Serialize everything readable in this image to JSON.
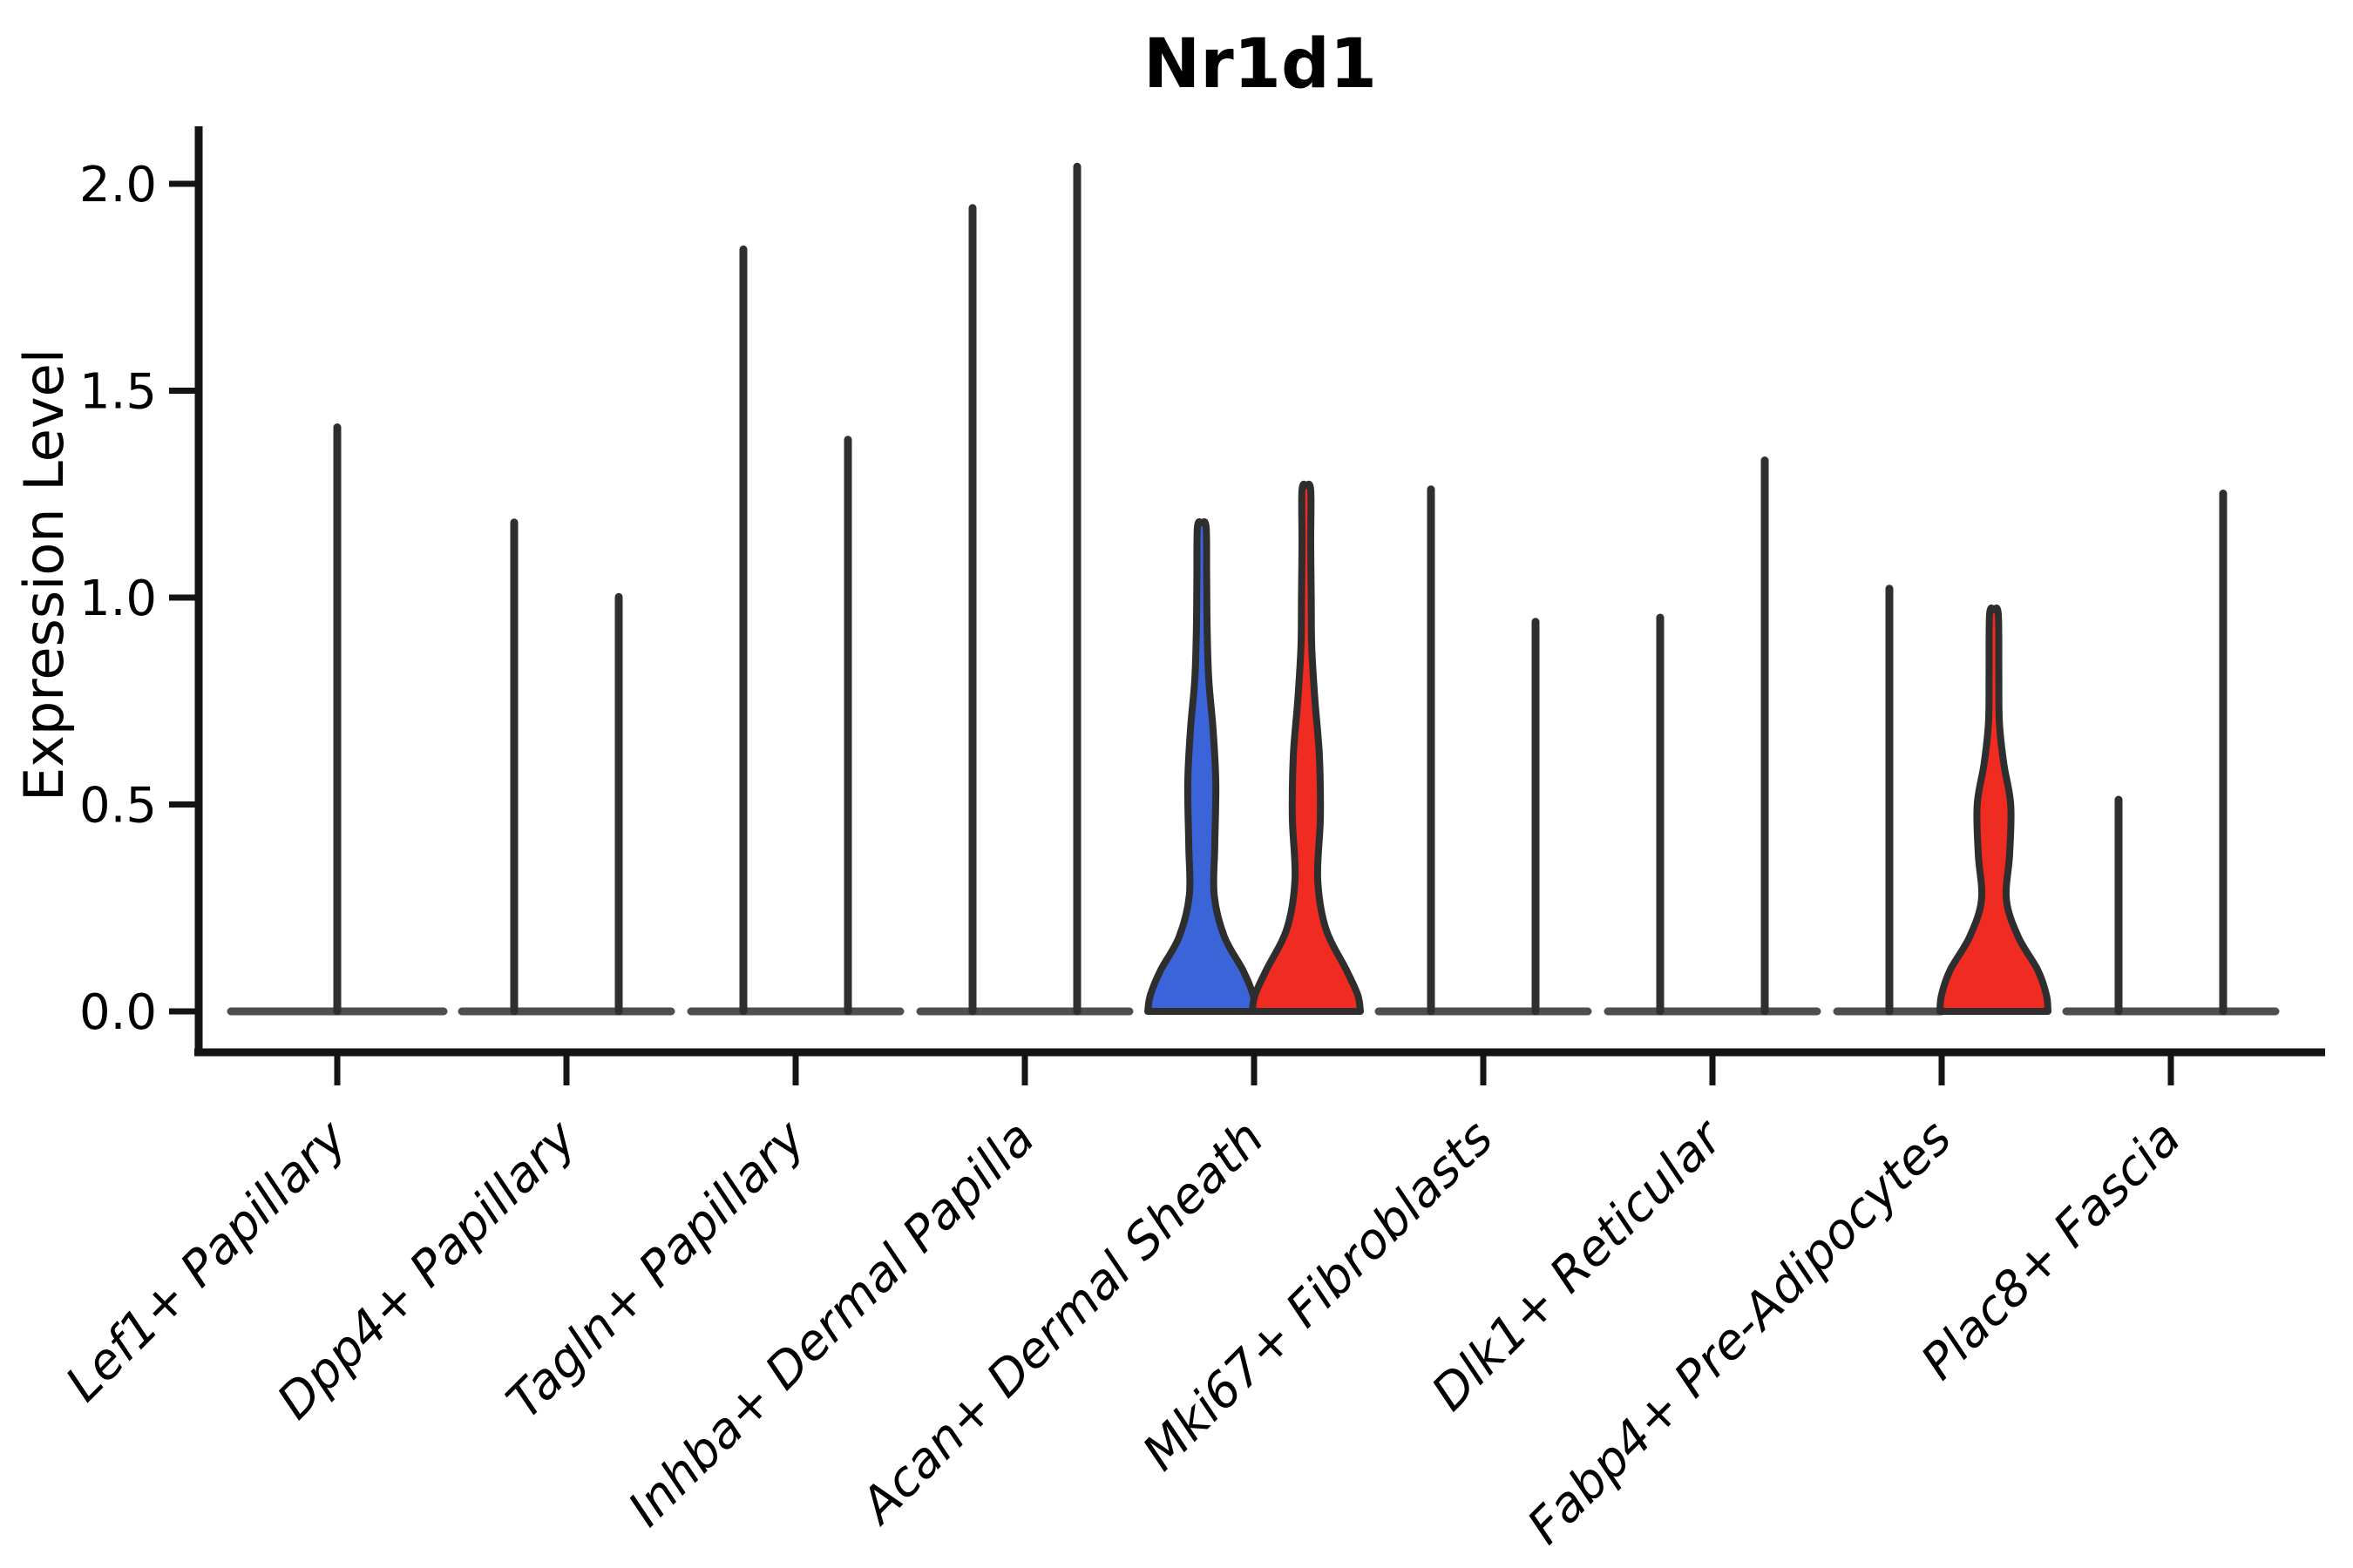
{
  "title": "Nr1d1",
  "chart_data": {
    "type": "violin",
    "title": "Nr1d1",
    "xlabel": "",
    "ylabel": "Expression Level",
    "ylim": [
      0,
      2.16
    ],
    "yticks": [
      0.0,
      0.5,
      1.0,
      1.5,
      2.0
    ],
    "grid": false,
    "legend": "none",
    "tick_label_style": "italic, rotated 45deg",
    "categories": [
      "Lef1+ Papillary",
      "Dpp4+ Papillary",
      "Tagln+ Papillary",
      "Inhba+ Dermal Papilla",
      "Acan+ Dermal Sheath",
      "Mki67+ Fibroblasts",
      "Dlk1+ Reticular",
      "Fabp4+ Pre-Adipocytes",
      "Plac8+ Fascia"
    ],
    "palette": {
      "split_blue": "#3B64D8",
      "split_red": "#F02B21",
      "violin_outline": "#2E2E2E",
      "spike_line": "#2F2F2F",
      "zero_baseline": "#4E4E4E",
      "axis": "#141414"
    },
    "groups": [
      {
        "category": "Lef1+ Papillary",
        "violins": [
          {
            "position": "full",
            "kind": "spike",
            "max": 1.42,
            "fill": null
          }
        ]
      },
      {
        "category": "Dpp4+ Papillary",
        "violins": [
          {
            "position": "left",
            "kind": "spike",
            "max": 1.19,
            "fill": null
          },
          {
            "position": "right",
            "kind": "spike",
            "max": 1.01,
            "fill": null
          }
        ]
      },
      {
        "category": "Tagln+ Papillary",
        "violins": [
          {
            "position": "left",
            "kind": "spike",
            "max": 1.85,
            "fill": null
          },
          {
            "position": "right",
            "kind": "spike",
            "max": 1.39,
            "fill": null
          }
        ]
      },
      {
        "category": "Inhba+ Dermal Papilla",
        "violins": [
          {
            "position": "left",
            "kind": "spike",
            "max": 1.95,
            "fill": null
          },
          {
            "position": "right",
            "kind": "spike",
            "max": 2.05,
            "fill": null
          }
        ]
      },
      {
        "category": "Acan+ Dermal Sheath",
        "violins": [
          {
            "position": "left",
            "kind": "density",
            "max": 1.17,
            "fill": "#3B64D8",
            "profile": [
              [
                0,
                1.0
              ],
              [
                0.04,
                0.95
              ],
              [
                0.1,
                0.76
              ],
              [
                0.18,
                0.42
              ],
              [
                0.28,
                0.23
              ],
              [
                0.4,
                0.24
              ],
              [
                0.55,
                0.26
              ],
              [
                0.68,
                0.21
              ],
              [
                0.8,
                0.13
              ],
              [
                0.92,
                0.1
              ],
              [
                1.05,
                0.09
              ],
              [
                1.17,
                0.08
              ]
            ]
          },
          {
            "position": "right",
            "kind": "density",
            "max": 1.26,
            "fill": "#F02B21",
            "profile": [
              [
                0,
                1.0
              ],
              [
                0.04,
                0.95
              ],
              [
                0.1,
                0.74
              ],
              [
                0.2,
                0.36
              ],
              [
                0.32,
                0.21
              ],
              [
                0.47,
                0.26
              ],
              [
                0.62,
                0.24
              ],
              [
                0.75,
                0.16
              ],
              [
                0.88,
                0.1
              ],
              [
                1.0,
                0.09
              ],
              [
                1.13,
                0.08
              ],
              [
                1.26,
                0.08
              ]
            ]
          }
        ]
      },
      {
        "category": "Mki67+ Fibroblasts",
        "violins": [
          {
            "position": "left",
            "kind": "spike",
            "max": 1.27,
            "fill": null
          },
          {
            "position": "right",
            "kind": "spike",
            "max": 0.95,
            "fill": null
          }
        ]
      },
      {
        "category": "Dlk1+ Reticular",
        "violins": [
          {
            "position": "left",
            "kind": "spike",
            "max": 0.96,
            "fill": null
          },
          {
            "position": "right",
            "kind": "spike",
            "max": 1.34,
            "fill": null
          }
        ]
      },
      {
        "category": "Fabp4+ Pre-Adipocytes",
        "violins": [
          {
            "position": "left",
            "kind": "spike",
            "max": 1.03,
            "fill": null
          },
          {
            "position": "right",
            "kind": "density",
            "max": 0.96,
            "fill": "#F02B21",
            "profile": [
              [
                0,
                1.0
              ],
              [
                0.04,
                0.97
              ],
              [
                0.1,
                0.81
              ],
              [
                0.18,
                0.45
              ],
              [
                0.27,
                0.23
              ],
              [
                0.38,
                0.29
              ],
              [
                0.5,
                0.31
              ],
              [
                0.6,
                0.18
              ],
              [
                0.7,
                0.1
              ],
              [
                0.82,
                0.09
              ],
              [
                0.96,
                0.08
              ]
            ]
          }
        ]
      },
      {
        "category": "Plac8+ Fascia",
        "violins": [
          {
            "position": "left",
            "kind": "spike",
            "max": 0.52,
            "fill": null
          },
          {
            "position": "right",
            "kind": "spike",
            "max": 1.26,
            "fill": null
          }
        ]
      }
    ]
  }
}
